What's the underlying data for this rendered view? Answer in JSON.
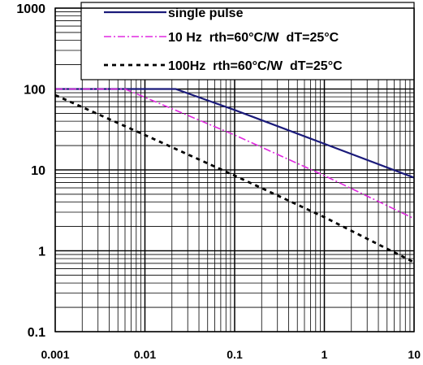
{
  "chart_data": {
    "type": "line",
    "x_scale": "log",
    "y_scale": "log",
    "xlim": [
      0.001,
      10
    ],
    "ylim": [
      0.1,
      1000
    ],
    "grid": true,
    "legend_placement": "top-right",
    "x_ticks": [
      {
        "value": 0.001,
        "label": "0.001"
      },
      {
        "value": 0.01,
        "label": "0.01"
      },
      {
        "value": 0.1,
        "label": "0.1"
      },
      {
        "value": 1,
        "label": "1"
      },
      {
        "value": 10,
        "label": "10"
      }
    ],
    "y_ticks": [
      {
        "value": 1000,
        "label": "1000"
      },
      {
        "value": 100,
        "label": "100"
      },
      {
        "value": 10,
        "label": "10"
      },
      {
        "value": 1,
        "label": "1"
      },
      {
        "value": 0.1,
        "label": "0.1"
      }
    ],
    "series": [
      {
        "name": "single pulse",
        "color": "#1a1a7a",
        "dash": "solid",
        "points": [
          [
            0.001,
            100
          ],
          [
            0.022,
            100
          ],
          [
            0.1,
            55
          ],
          [
            1,
            21
          ],
          [
            10,
            8
          ]
        ]
      },
      {
        "name": "10 Hz  rth=60°C/W  dT=25°C",
        "color": "#e028e0",
        "dash": "dash-dot",
        "points": [
          [
            0.001,
            100
          ],
          [
            0.006,
            100
          ],
          [
            0.1,
            27
          ],
          [
            1,
            8.5
          ],
          [
            10,
            2.5
          ]
        ]
      },
      {
        "name": "100Hz  rth=60°C/W  dT=25°C",
        "color": "#000000",
        "dash": "dashed",
        "points": [
          [
            0.001,
            84
          ],
          [
            0.01,
            27
          ],
          [
            0.1,
            8.5
          ],
          [
            1,
            2.6
          ],
          [
            10,
            0.72
          ]
        ]
      }
    ]
  }
}
